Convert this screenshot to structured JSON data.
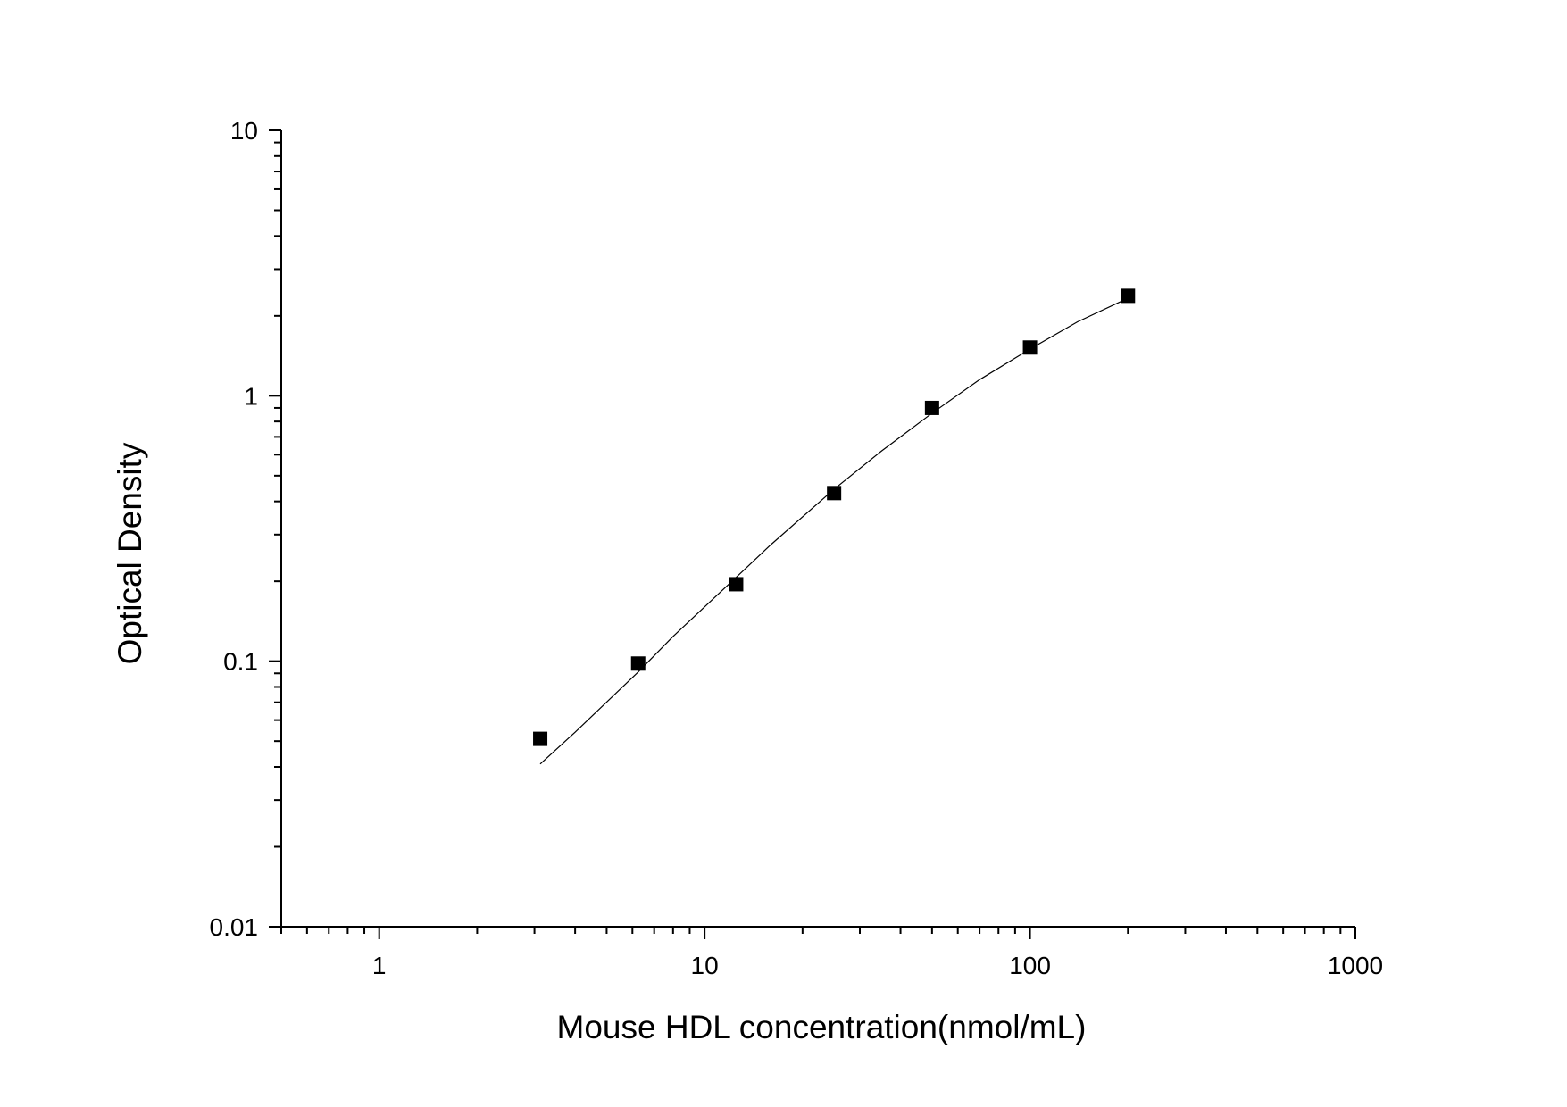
{
  "chart_data": {
    "type": "scatter",
    "title": "",
    "xlabel": "Mouse HDL concentration(nmol/mL)",
    "ylabel": "Optical Density",
    "x_scale": "log",
    "y_scale": "log",
    "xlim": [
      0.5,
      1000
    ],
    "ylim": [
      0.01,
      10
    ],
    "x_ticks": [
      "1",
      "10",
      "100",
      "1000"
    ],
    "y_ticks": [
      "0.01",
      "0.1",
      "1",
      "10"
    ],
    "grid": false,
    "legend": "none",
    "series": [
      {
        "marker": "square",
        "color": "#000000",
        "x": [
          3.125,
          6.25,
          12.5,
          25,
          50,
          100,
          200
        ],
        "y": [
          0.051,
          0.098,
          0.195,
          0.43,
          0.9,
          1.52,
          2.38
        ]
      }
    ],
    "fit_curve": {
      "color": "#000000",
      "x": [
        3.125,
        4,
        6.25,
        8,
        12.5,
        16,
        25,
        35,
        50,
        70,
        100,
        140,
        200
      ],
      "y": [
        0.041,
        0.054,
        0.091,
        0.124,
        0.207,
        0.275,
        0.445,
        0.62,
        0.86,
        1.15,
        1.5,
        1.9,
        2.33
      ]
    }
  }
}
